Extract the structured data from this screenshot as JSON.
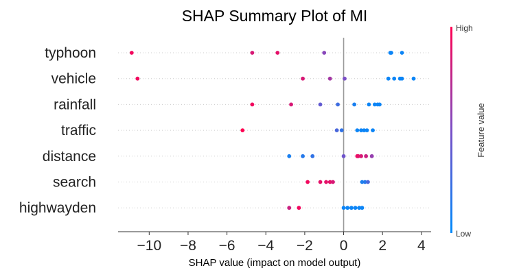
{
  "chart_data": {
    "type": "scatter",
    "title": "SHAP Summary Plot of MI",
    "xlabel": "SHAP value (impact on model output)",
    "xlim": [
      -11.6,
      4.5
    ],
    "xticks": [
      -10,
      -8,
      -6,
      -4,
      -2,
      0,
      2,
      4
    ],
    "xtick_labels": [
      "−10",
      "−8",
      "−6",
      "−4",
      "−2",
      "0",
      "2",
      "4"
    ],
    "grid": false,
    "colorbar": {
      "label": "Feature value",
      "high_label": "High",
      "low_label": "Low",
      "low_color": "#008bfb",
      "high_color": "#ff0052"
    },
    "features": [
      {
        "name": "typhoon",
        "points": [
          {
            "x": -10.9,
            "v": 0.95
          },
          {
            "x": -4.7,
            "v": 0.85
          },
          {
            "x": -3.4,
            "v": 0.9
          },
          {
            "x": -1.0,
            "v": 0.55
          },
          {
            "x": 2.45,
            "v": 0.05
          },
          {
            "x": 2.4,
            "v": 0.05
          },
          {
            "x": 3.0,
            "v": 0.05
          }
        ]
      },
      {
        "name": "vehicle",
        "points": [
          {
            "x": -10.6,
            "v": 0.95
          },
          {
            "x": -2.1,
            "v": 0.85
          },
          {
            "x": -0.7,
            "v": 0.65
          },
          {
            "x": 0.05,
            "v": 0.5
          },
          {
            "x": 2.3,
            "v": 0.05
          },
          {
            "x": 2.6,
            "v": 0.05
          },
          {
            "x": 2.9,
            "v": 0.05
          },
          {
            "x": 3.0,
            "v": 0.05
          },
          {
            "x": 3.6,
            "v": 0.05
          }
        ]
      },
      {
        "name": "rainfall",
        "points": [
          {
            "x": -4.7,
            "v": 0.95
          },
          {
            "x": -2.7,
            "v": 0.85
          },
          {
            "x": -1.2,
            "v": 0.4
          },
          {
            "x": -0.3,
            "v": 0.25
          },
          {
            "x": 0.55,
            "v": 0.1
          },
          {
            "x": 1.3,
            "v": 0.05
          },
          {
            "x": 1.6,
            "v": 0.05
          },
          {
            "x": 1.75,
            "v": 0.05
          },
          {
            "x": 1.85,
            "v": 0.05
          }
        ]
      },
      {
        "name": "traffic",
        "points": [
          {
            "x": -5.2,
            "v": 1.0
          },
          {
            "x": -0.35,
            "v": 0.3
          },
          {
            "x": -0.1,
            "v": 0.2
          },
          {
            "x": 0.7,
            "v": 0.05
          },
          {
            "x": 0.9,
            "v": 0.05
          },
          {
            "x": 1.05,
            "v": 0.05
          },
          {
            "x": 1.2,
            "v": 0.05
          },
          {
            "x": 1.5,
            "v": 0.05
          }
        ]
      },
      {
        "name": "distance",
        "points": [
          {
            "x": -2.8,
            "v": 0.1
          },
          {
            "x": -2.1,
            "v": 0.15
          },
          {
            "x": -1.6,
            "v": 0.2
          },
          {
            "x": 0.0,
            "v": 0.45
          },
          {
            "x": 0.7,
            "v": 0.95
          },
          {
            "x": 0.75,
            "v": 0.9
          },
          {
            "x": 0.9,
            "v": 0.85
          },
          {
            "x": 1.15,
            "v": 0.8
          },
          {
            "x": 1.45,
            "v": 0.6
          }
        ]
      },
      {
        "name": "search",
        "points": [
          {
            "x": -1.85,
            "v": 0.95
          },
          {
            "x": -1.2,
            "v": 0.9
          },
          {
            "x": -0.9,
            "v": 0.9
          },
          {
            "x": -0.7,
            "v": 0.9
          },
          {
            "x": -0.55,
            "v": 0.85
          },
          {
            "x": 0.95,
            "v": 0.1
          },
          {
            "x": 1.1,
            "v": 0.15
          },
          {
            "x": 1.25,
            "v": 0.3
          }
        ]
      },
      {
        "name": "highwayden",
        "points": [
          {
            "x": -2.8,
            "v": 0.8
          },
          {
            "x": -2.3,
            "v": 0.95
          },
          {
            "x": 0.0,
            "v": 0.05
          },
          {
            "x": 0.2,
            "v": 0.05
          },
          {
            "x": 0.4,
            "v": 0.05
          },
          {
            "x": 0.6,
            "v": 0.05
          },
          {
            "x": 0.8,
            "v": 0.05
          },
          {
            "x": 0.95,
            "v": 0.05
          }
        ]
      }
    ]
  }
}
